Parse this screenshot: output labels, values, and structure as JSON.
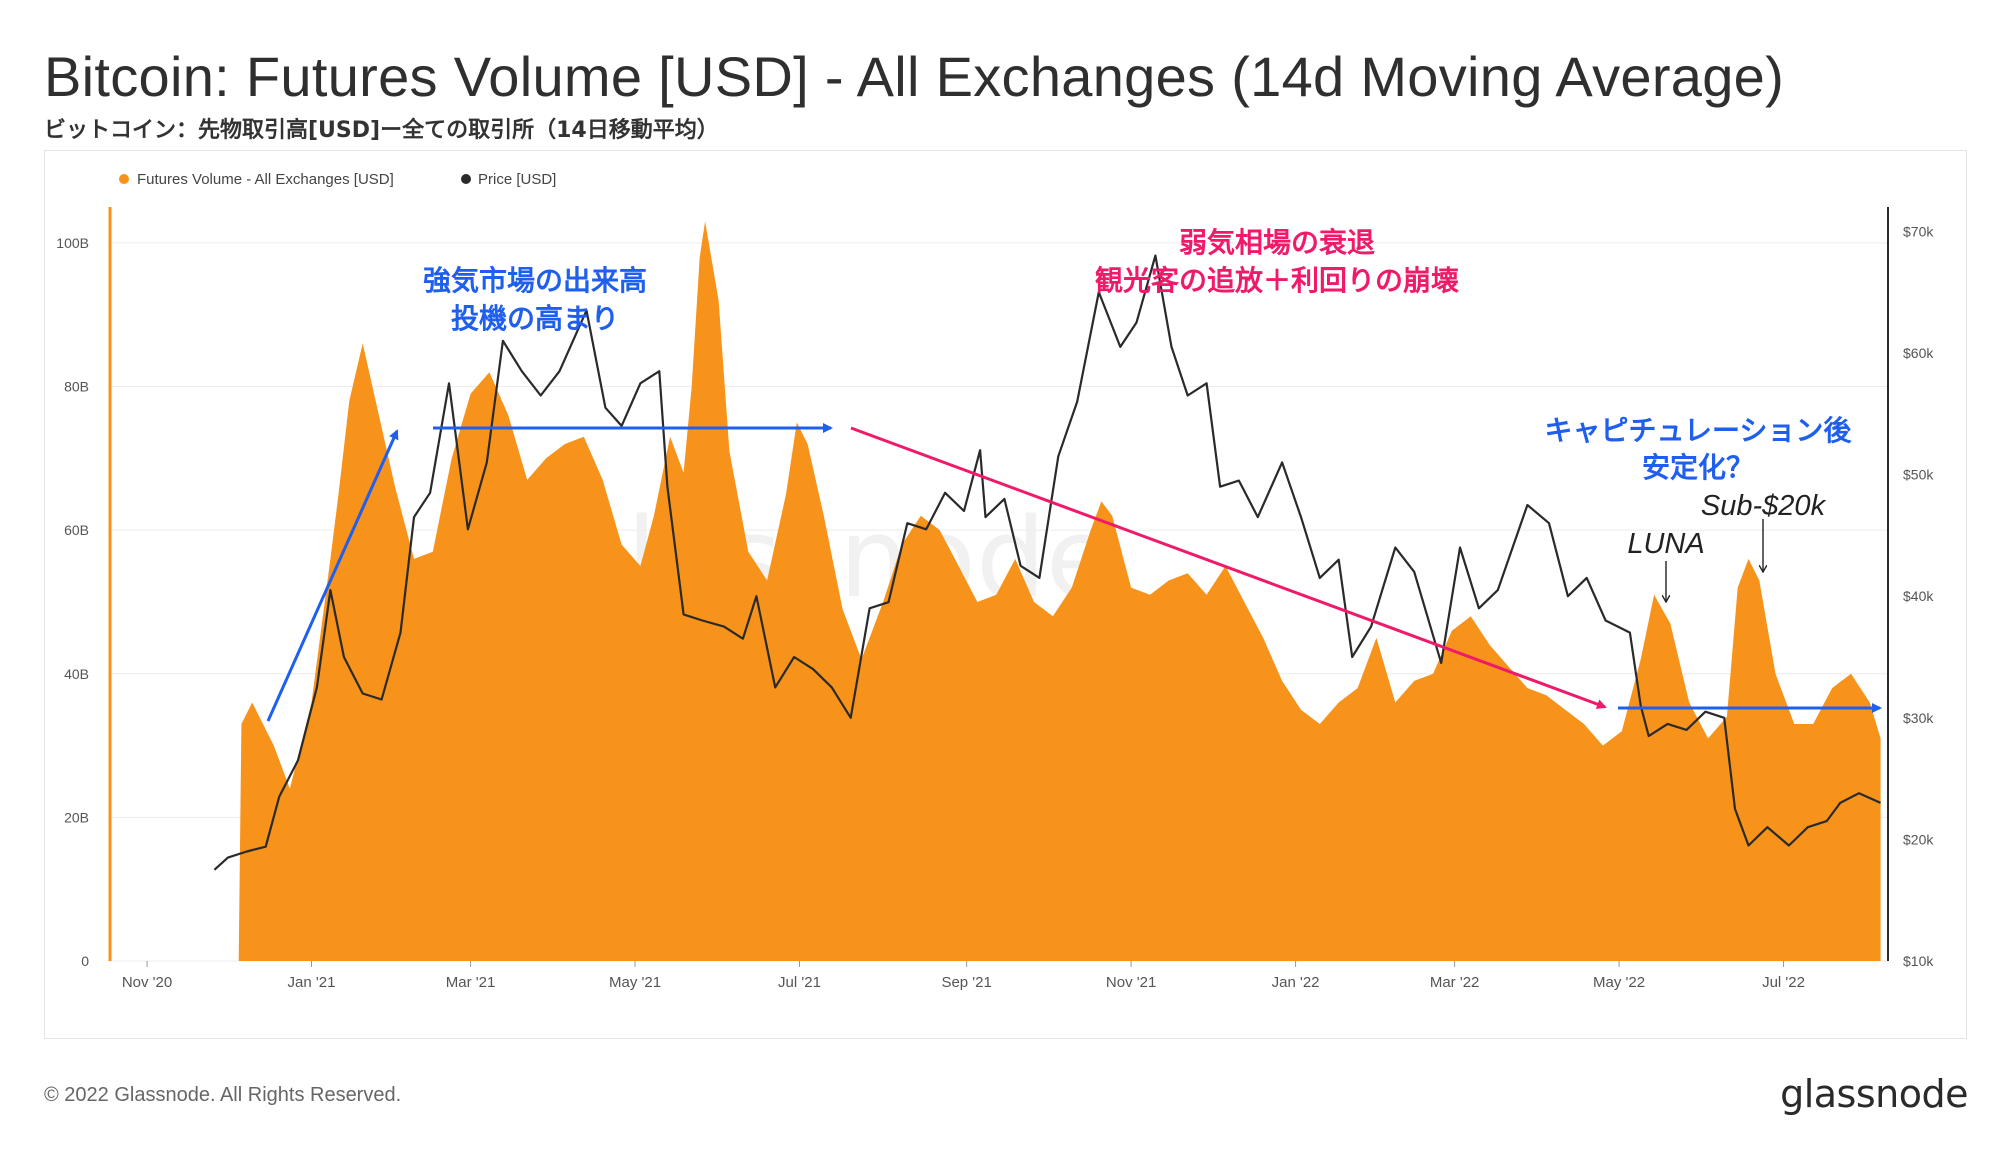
{
  "title": "Bitcoin: Futures Volume [USD] - All Exchanges (14d Moving Average)",
  "subtitle": "ビットコイン：先物取引高[USD]ー全ての取引所（14日移動平均）",
  "footer": "© 2022 Glassnode. All Rights Reserved.",
  "brand": "glassnode",
  "watermark": "glassnode",
  "colors": {
    "volume": "#f7931a",
    "price": "#2a2a2a",
    "blue": "#1f5ff0",
    "pink": "#f0196a"
  },
  "chart_data": {
    "type": "area",
    "x_ticks": [
      "Nov '20",
      "Jan '21",
      "Mar '21",
      "May '21",
      "Jul '21",
      "Sep '21",
      "Nov '21",
      "Jan '22",
      "Mar '22",
      "May '22",
      "Jul '22"
    ],
    "left_ticks": [
      "0",
      "20B",
      "40B",
      "60B",
      "80B",
      "100B"
    ],
    "left_range": [
      0,
      105
    ],
    "right_ticks": [
      "$10k",
      "$20k",
      "$30k",
      "$40k",
      "$50k",
      "$60k",
      "$70k"
    ],
    "right_range": [
      10,
      72
    ],
    "legend": [
      "Futures Volume - All Exchanges [USD]",
      "Price [USD]"
    ],
    "legend_placement": "top-left",
    "series": [
      {
        "name": "Futures Volume - All Exchanges [USD]",
        "axis": "left",
        "unit": "B USD",
        "points": [
          [
            "2020-12-05",
            0
          ],
          [
            "2020-12-06",
            33
          ],
          [
            "2020-12-10",
            36
          ],
          [
            "2020-12-18",
            30
          ],
          [
            "2020-12-24",
            24
          ],
          [
            "2021-01-01",
            36
          ],
          [
            "2021-01-08",
            56
          ],
          [
            "2021-01-11",
            65
          ],
          [
            "2021-01-15",
            78
          ],
          [
            "2021-01-20",
            86
          ],
          [
            "2021-01-26",
            76
          ],
          [
            "2021-02-01",
            66
          ],
          [
            "2021-02-08",
            56
          ],
          [
            "2021-02-15",
            57
          ],
          [
            "2021-02-22",
            70
          ],
          [
            "2021-03-01",
            79
          ],
          [
            "2021-03-08",
            82
          ],
          [
            "2021-03-15",
            76
          ],
          [
            "2021-03-22",
            67
          ],
          [
            "2021-03-29",
            70
          ],
          [
            "2021-04-05",
            72
          ],
          [
            "2021-04-12",
            73
          ],
          [
            "2021-04-19",
            67
          ],
          [
            "2021-04-26",
            58
          ],
          [
            "2021-05-03",
            55
          ],
          [
            "2021-05-08",
            62
          ],
          [
            "2021-05-14",
            73
          ],
          [
            "2021-05-19",
            68
          ],
          [
            "2021-05-22",
            80
          ],
          [
            "2021-05-25",
            98
          ],
          [
            "2021-05-27",
            103
          ],
          [
            "2021-06-01",
            92
          ],
          [
            "2021-06-05",
            71
          ],
          [
            "2021-06-12",
            57
          ],
          [
            "2021-06-19",
            53
          ],
          [
            "2021-06-26",
            65
          ],
          [
            "2021-06-30",
            75
          ],
          [
            "2021-07-04",
            72
          ],
          [
            "2021-07-10",
            62
          ],
          [
            "2021-07-17",
            49
          ],
          [
            "2021-07-24",
            42
          ],
          [
            "2021-08-01",
            50
          ],
          [
            "2021-08-08",
            58
          ],
          [
            "2021-08-15",
            62
          ],
          [
            "2021-08-22",
            60
          ],
          [
            "2021-08-29",
            55
          ],
          [
            "2021-09-05",
            50
          ],
          [
            "2021-09-12",
            51
          ],
          [
            "2021-09-19",
            56
          ],
          [
            "2021-09-26",
            50
          ],
          [
            "2021-10-03",
            48
          ],
          [
            "2021-10-10",
            52
          ],
          [
            "2021-10-17",
            60
          ],
          [
            "2021-10-21",
            64
          ],
          [
            "2021-10-25",
            62
          ],
          [
            "2021-11-01",
            52
          ],
          [
            "2021-11-08",
            51
          ],
          [
            "2021-11-15",
            53
          ],
          [
            "2021-11-22",
            54
          ],
          [
            "2021-11-29",
            51
          ],
          [
            "2021-12-06",
            55
          ],
          [
            "2021-12-13",
            50
          ],
          [
            "2021-12-20",
            45
          ],
          [
            "2021-12-27",
            39
          ],
          [
            "2022-01-03",
            35
          ],
          [
            "2022-01-10",
            33
          ],
          [
            "2022-01-17",
            36
          ],
          [
            "2022-01-24",
            38
          ],
          [
            "2022-01-31",
            45
          ],
          [
            "2022-02-07",
            36
          ],
          [
            "2022-02-14",
            39
          ],
          [
            "2022-02-21",
            40
          ],
          [
            "2022-02-28",
            46
          ],
          [
            "2022-03-07",
            48
          ],
          [
            "2022-03-14",
            44
          ],
          [
            "2022-03-21",
            41
          ],
          [
            "2022-03-28",
            38
          ],
          [
            "2022-04-04",
            37
          ],
          [
            "2022-04-11",
            35
          ],
          [
            "2022-04-18",
            33
          ],
          [
            "2022-04-25",
            30
          ],
          [
            "2022-05-02",
            32
          ],
          [
            "2022-05-09",
            42
          ],
          [
            "2022-05-14",
            51
          ],
          [
            "2022-05-20",
            47
          ],
          [
            "2022-05-27",
            36
          ],
          [
            "2022-06-03",
            31
          ],
          [
            "2022-06-10",
            34
          ],
          [
            "2022-06-14",
            52
          ],
          [
            "2022-06-18",
            56
          ],
          [
            "2022-06-22",
            53
          ],
          [
            "2022-06-28",
            40
          ],
          [
            "2022-07-05",
            33
          ],
          [
            "2022-07-12",
            33
          ],
          [
            "2022-07-19",
            38
          ],
          [
            "2022-07-26",
            40
          ],
          [
            "2022-08-02",
            36
          ],
          [
            "2022-08-06",
            31
          ]
        ]
      },
      {
        "name": "Price [USD]",
        "axis": "right",
        "unit": "k USD",
        "points": [
          [
            "2020-11-26",
            17.5
          ],
          [
            "2020-12-01",
            18.5
          ],
          [
            "2020-12-08",
            19.0
          ],
          [
            "2020-12-15",
            19.4
          ],
          [
            "2020-12-20",
            23.5
          ],
          [
            "2020-12-27",
            26.5
          ],
          [
            "2021-01-03",
            32.5
          ],
          [
            "2021-01-08",
            40.5
          ],
          [
            "2021-01-13",
            35.0
          ],
          [
            "2021-01-20",
            32.0
          ],
          [
            "2021-01-27",
            31.5
          ],
          [
            "2021-02-03",
            37.0
          ],
          [
            "2021-02-08",
            46.5
          ],
          [
            "2021-02-14",
            48.5
          ],
          [
            "2021-02-21",
            57.5
          ],
          [
            "2021-02-28",
            45.5
          ],
          [
            "2021-03-07",
            51.0
          ],
          [
            "2021-03-13",
            61.0
          ],
          [
            "2021-03-20",
            58.5
          ],
          [
            "2021-03-27",
            56.5
          ],
          [
            "2021-04-03",
            58.5
          ],
          [
            "2021-04-13",
            63.5
          ],
          [
            "2021-04-20",
            55.5
          ],
          [
            "2021-04-26",
            54.0
          ],
          [
            "2021-05-03",
            57.5
          ],
          [
            "2021-05-10",
            58.5
          ],
          [
            "2021-05-13",
            49.0
          ],
          [
            "2021-05-19",
            38.5
          ],
          [
            "2021-05-26",
            38.0
          ],
          [
            "2021-06-03",
            37.5
          ],
          [
            "2021-06-10",
            36.5
          ],
          [
            "2021-06-15",
            40.0
          ],
          [
            "2021-06-22",
            32.5
          ],
          [
            "2021-06-29",
            35.0
          ],
          [
            "2021-07-06",
            34.0
          ],
          [
            "2021-07-13",
            32.5
          ],
          [
            "2021-07-20",
            30.0
          ],
          [
            "2021-07-27",
            39.0
          ],
          [
            "2021-08-03",
            39.5
          ],
          [
            "2021-08-10",
            46.0
          ],
          [
            "2021-08-17",
            45.5
          ],
          [
            "2021-08-24",
            48.5
          ],
          [
            "2021-08-31",
            47.0
          ],
          [
            "2021-09-06",
            52.0
          ],
          [
            "2021-09-08",
            46.5
          ],
          [
            "2021-09-15",
            48.0
          ],
          [
            "2021-09-21",
            42.5
          ],
          [
            "2021-09-28",
            41.5
          ],
          [
            "2021-10-05",
            51.5
          ],
          [
            "2021-10-12",
            56.0
          ],
          [
            "2021-10-20",
            65.0
          ],
          [
            "2021-10-28",
            60.5
          ],
          [
            "2021-11-03",
            62.5
          ],
          [
            "2021-11-10",
            68.0
          ],
          [
            "2021-11-16",
            60.5
          ],
          [
            "2021-11-22",
            56.5
          ],
          [
            "2021-11-29",
            57.5
          ],
          [
            "2021-12-04",
            49.0
          ],
          [
            "2021-12-11",
            49.5
          ],
          [
            "2021-12-18",
            46.5
          ],
          [
            "2021-12-27",
            51.0
          ],
          [
            "2022-01-03",
            46.5
          ],
          [
            "2022-01-10",
            41.5
          ],
          [
            "2022-01-17",
            43.0
          ],
          [
            "2022-01-22",
            35.0
          ],
          [
            "2022-01-29",
            37.5
          ],
          [
            "2022-02-07",
            44.0
          ],
          [
            "2022-02-14",
            42.0
          ],
          [
            "2022-02-24",
            34.5
          ],
          [
            "2022-03-03",
            44.0
          ],
          [
            "2022-03-10",
            39.0
          ],
          [
            "2022-03-17",
            40.5
          ],
          [
            "2022-03-28",
            47.5
          ],
          [
            "2022-04-05",
            46.0
          ],
          [
            "2022-04-12",
            40.0
          ],
          [
            "2022-04-19",
            41.5
          ],
          [
            "2022-04-26",
            38.0
          ],
          [
            "2022-05-05",
            37.0
          ],
          [
            "2022-05-09",
            31.0
          ],
          [
            "2022-05-12",
            28.5
          ],
          [
            "2022-05-19",
            29.5
          ],
          [
            "2022-05-26",
            29.0
          ],
          [
            "2022-06-02",
            30.5
          ],
          [
            "2022-06-09",
            30.0
          ],
          [
            "2022-06-13",
            22.5
          ],
          [
            "2022-06-18",
            19.5
          ],
          [
            "2022-06-25",
            21.0
          ],
          [
            "2022-07-03",
            19.5
          ],
          [
            "2022-07-10",
            21.0
          ],
          [
            "2022-07-17",
            21.5
          ],
          [
            "2022-07-22",
            23.0
          ],
          [
            "2022-07-29",
            23.8
          ],
          [
            "2022-08-06",
            23.0
          ]
        ]
      }
    ],
    "annotations": [
      {
        "text": "強気市場の出来高\n投機の高まり",
        "color": "blue"
      },
      {
        "text": "弱気相場の衰退\n観光客の追放＋利回りの崩壊",
        "color": "pink"
      },
      {
        "text": "キャピチュレーション後\n安定化？",
        "color": "blue"
      },
      {
        "text": "LUNA",
        "color": "black"
      },
      {
        "text": "Sub-$20k",
        "color": "black"
      }
    ]
  }
}
